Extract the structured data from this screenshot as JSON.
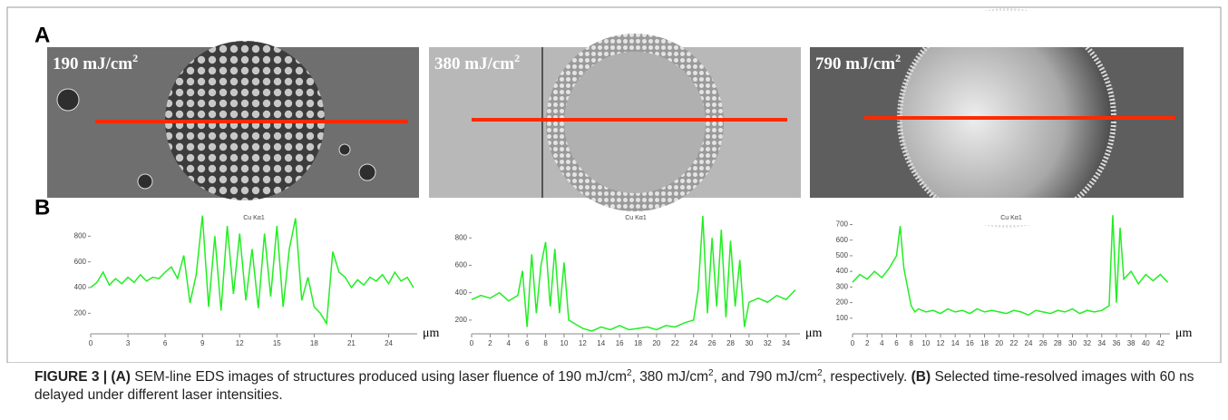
{
  "figure": {
    "panel_a_label": "A",
    "panel_b_label": "B",
    "images": [
      {
        "label": "190 mJ/cm",
        "sup": "2"
      },
      {
        "label": "380 mJ/cm",
        "sup": "2"
      },
      {
        "label": "790 mJ/cm",
        "sup": "2"
      }
    ]
  },
  "chart_data": [
    {
      "type": "line",
      "title": "Cu Kα1",
      "x_label": "μm",
      "x": [
        0,
        0.5,
        1,
        1.5,
        2,
        2.5,
        3,
        3.5,
        4,
        4.5,
        5,
        5.5,
        6,
        6.5,
        7,
        7.5,
        8,
        8.5,
        9,
        9.5,
        10,
        10.5,
        11,
        11.5,
        12,
        12.5,
        13,
        13.5,
        14,
        14.5,
        15,
        15.5,
        16,
        16.5,
        17,
        17.5,
        18,
        18.5,
        19,
        19.5,
        20,
        20.5,
        21,
        21.5,
        22,
        22.5,
        23,
        23.5,
        24,
        24.5,
        25,
        25.5,
        26
      ],
      "series": [
        {
          "color": "#22ee22",
          "values": [
            400,
            440,
            520,
            420,
            470,
            430,
            480,
            440,
            500,
            450,
            480,
            470,
            520,
            560,
            470,
            650,
            280,
            500,
            960,
            250,
            800,
            220,
            880,
            350,
            820,
            300,
            700,
            240,
            820,
            330,
            880,
            250,
            700,
            940,
            300,
            480,
            250,
            200,
            120,
            680,
            520,
            480,
            400,
            460,
            420,
            480,
            450,
            500,
            430,
            520,
            450,
            480,
            400
          ]
        }
      ],
      "xlim": [
        0,
        26.3
      ],
      "ylim": [
        40,
        1000
      ],
      "xticks": [
        0,
        3,
        6,
        9,
        12,
        15,
        18,
        21,
        24
      ],
      "yticks": [
        200,
        400,
        600,
        800
      ]
    },
    {
      "type": "line",
      "title": "Cu Kα1",
      "x_label": "μm",
      "x": [
        0,
        1,
        2,
        3,
        4,
        5,
        5.5,
        6,
        6.5,
        7,
        7.5,
        8,
        8.5,
        9,
        9.5,
        10,
        10.5,
        11,
        12,
        13,
        14,
        15,
        16,
        17,
        18,
        19,
        20,
        21,
        22,
        23,
        24,
        24.5,
        25,
        25.5,
        26,
        26.5,
        27,
        27.5,
        28,
        28.5,
        29,
        29.5,
        30,
        31,
        32,
        33,
        34,
        35
      ],
      "series": [
        {
          "color": "#22ee22",
          "values": [
            350,
            380,
            360,
            400,
            340,
            380,
            560,
            150,
            680,
            250,
            600,
            770,
            300,
            720,
            250,
            620,
            200,
            180,
            140,
            120,
            150,
            130,
            160,
            130,
            140,
            150,
            130,
            160,
            150,
            180,
            200,
            420,
            960,
            250,
            800,
            300,
            860,
            220,
            780,
            300,
            640,
            150,
            330,
            360,
            330,
            380,
            350,
            420
          ]
        }
      ],
      "xlim": [
        0,
        35.5
      ],
      "ylim": [
        100,
        1000
      ],
      "xticks": [
        0,
        2,
        4,
        6,
        8,
        10,
        12,
        14,
        16,
        18,
        20,
        22,
        24,
        26,
        28,
        30,
        32,
        34
      ],
      "yticks": [
        200,
        400,
        600,
        800
      ]
    },
    {
      "type": "line",
      "title": "Cu Kα1",
      "x_label": "μm",
      "x": [
        0,
        1,
        2,
        3,
        4,
        5,
        6,
        6.5,
        7,
        7.5,
        8,
        8.5,
        9,
        10,
        11,
        12,
        13,
        14,
        15,
        16,
        17,
        18,
        19,
        20,
        21,
        22,
        23,
        24,
        25,
        26,
        27,
        28,
        29,
        30,
        31,
        32,
        33,
        34,
        35,
        35.5,
        36,
        36.5,
        37,
        38,
        39,
        40,
        41,
        42,
        43
      ],
      "series": [
        {
          "color": "#22ee22",
          "values": [
            330,
            380,
            350,
            400,
            360,
            420,
            500,
            690,
            420,
            300,
            180,
            140,
            160,
            140,
            150,
            130,
            160,
            140,
            150,
            130,
            160,
            140,
            150,
            140,
            130,
            150,
            140,
            120,
            150,
            140,
            130,
            150,
            140,
            160,
            130,
            150,
            140,
            150,
            180,
            760,
            200,
            680,
            350,
            400,
            320,
            380,
            340,
            380,
            330
          ]
        }
      ],
      "xlim": [
        0,
        43.3
      ],
      "ylim": [
        0,
        790
      ],
      "xticks": [
        0,
        2,
        4,
        6,
        8,
        10,
        12,
        14,
        16,
        18,
        20,
        22,
        24,
        26,
        28,
        30,
        32,
        34,
        36,
        38,
        40,
        42
      ],
      "yticks": [
        100,
        200,
        300,
        400,
        500,
        600,
        700
      ]
    }
  ],
  "caption": {
    "segments": [
      {
        "text": "FIGURE 3 | (A)",
        "bold": true
      },
      {
        "text": " SEM-line EDS images of structures produced using laser fluence of 190 mJ/cm"
      },
      {
        "text": "2",
        "sup": true
      },
      {
        "text": ", 380 mJ/cm"
      },
      {
        "text": "2",
        "sup": true
      },
      {
        "text": ", and 790 mJ/cm"
      },
      {
        "text": "2",
        "sup": true
      },
      {
        "text": ", respectively. "
      },
      {
        "text": "(B)",
        "bold": true
      },
      {
        "text": " Selected time-resolved images with 60 ns delayed under different laser intensities."
      }
    ]
  }
}
